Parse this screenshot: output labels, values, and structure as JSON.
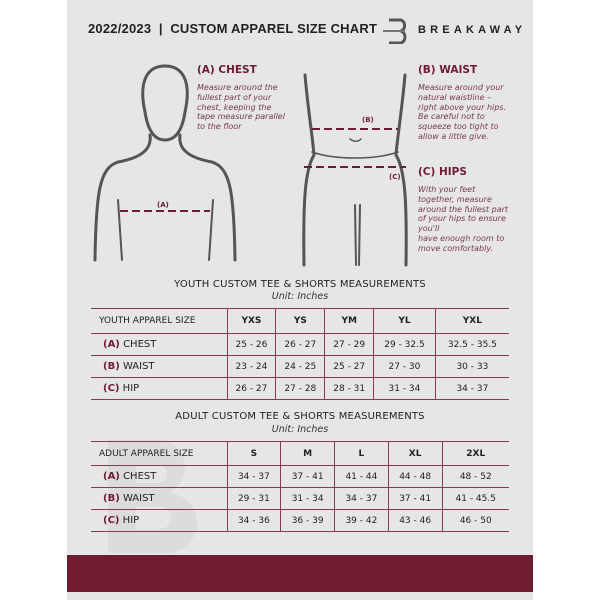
{
  "header": {
    "title": "2022/2023  |  CUSTOM APPAREL SIZE CHART",
    "brand": "BREAKAWAY",
    "logo_letter": "B"
  },
  "colors": {
    "accent": "#6f1c30",
    "background": "#e6e6e8"
  },
  "chest": {
    "title": "(A) CHEST",
    "desc": [
      "Measure around the",
      "fullest part of your",
      "chest, keeping the",
      "tape measure parallel",
      "to the floor"
    ],
    "marker": "(A)"
  },
  "waist": {
    "title": "(B) WAIST",
    "desc": [
      "Measure around your",
      "natural waistline –",
      "right above your hips.",
      "Be careful not to",
      "squeeze too tight to",
      "allow a little give."
    ],
    "marker": "(B)"
  },
  "hips": {
    "title": "(C) HIPS",
    "desc": [
      "With your feet",
      "together, measure",
      "around the fullest part",
      "of your hips to ensure",
      "you'll",
      "have enough room to",
      "move comfortably."
    ],
    "marker": "(C)"
  },
  "youth": {
    "title": "YOUTH CUSTOM TEE & SHORTS MEASUREMENTS",
    "unit": "Unit: Inches",
    "header": "YOUTH APPAREL SIZE",
    "sizes": [
      "YXS",
      "YS",
      "YM",
      "YL",
      "YXL"
    ],
    "rows": [
      {
        "letter": "(A)",
        "label": "CHEST",
        "values": [
          "25 - 26",
          "26 - 27",
          "27 - 29",
          "29 - 32.5",
          "32.5 - 35.5"
        ]
      },
      {
        "letter": "(B)",
        "label": "WAIST",
        "values": [
          "23 - 24",
          "24 - 25",
          "25 - 27",
          "27 - 30",
          "30 - 33"
        ]
      },
      {
        "letter": "(C)",
        "label": "HIP",
        "values": [
          "26 - 27",
          "27 - 28",
          "28 - 31",
          "31 - 34",
          "34 - 37"
        ]
      }
    ]
  },
  "adult": {
    "title": "ADULT CUSTOM TEE & SHORTS MEASUREMENTS",
    "unit": "Unit: Inches",
    "header": "ADULT APPAREL SIZE",
    "sizes": [
      "S",
      "M",
      "L",
      "XL",
      "2XL"
    ],
    "rows": [
      {
        "letter": "(A)",
        "label": "CHEST",
        "values": [
          "34 - 37",
          "37 - 41",
          "41 - 44",
          "44 - 48",
          "48 - 52"
        ]
      },
      {
        "letter": "(B)",
        "label": "WAIST",
        "values": [
          "29 - 31",
          "31 - 34",
          "34 - 37",
          "37 - 41",
          "41 - 45.5"
        ]
      },
      {
        "letter": "(C)",
        "label": "HIP",
        "values": [
          "34 - 36",
          "36 - 39",
          "39 - 42",
          "43 - 46",
          "46 - 50"
        ]
      }
    ]
  }
}
